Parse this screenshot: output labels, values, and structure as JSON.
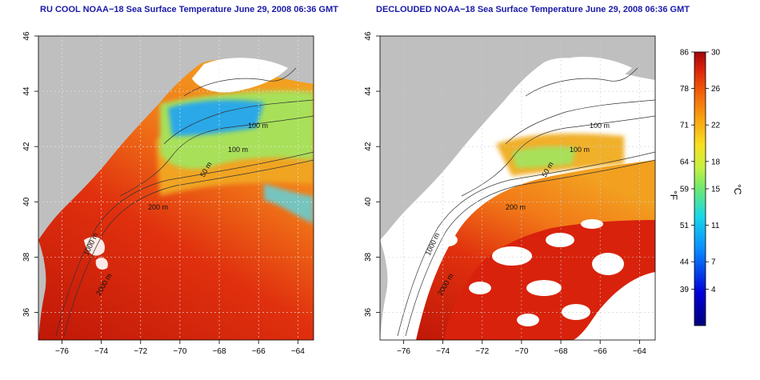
{
  "panels": [
    {
      "id": "ru-cool",
      "title": "RU COOL NOAA−18 Sea Surface Temperature June 29, 2008 06:36 GMT",
      "depth_labels": [
        "100 m",
        "100 m",
        "50 m",
        "200 m",
        "1000 m",
        "2000 m"
      ]
    },
    {
      "id": "declouded",
      "title": "DECLOUDED NOAA−18 Sea Surface Temperature June 29, 2008 06:36 GMT",
      "depth_labels": [
        "100 m",
        "100 m",
        "50 m",
        "200 m",
        "1000 m",
        "2000 m"
      ]
    }
  ],
  "map_axes": {
    "lon_ticks": [
      "−76",
      "−74",
      "−72",
      "−70",
      "−68",
      "−66",
      "−64"
    ],
    "lat_ticks": [
      "36",
      "38",
      "40",
      "42",
      "44",
      "46"
    ],
    "lon_values": [
      -76,
      -74,
      -72,
      -70,
      -68,
      -66,
      -64
    ],
    "lat_values": [
      36,
      38,
      40,
      42,
      44,
      46
    ],
    "lon_range": [
      -77.2,
      -63.2
    ],
    "lat_range": [
      35,
      46
    ]
  },
  "colorbar": {
    "fahrenheit_ticks": [
      "86",
      "78",
      "71",
      "64",
      "59",
      "51",
      "44",
      "39"
    ],
    "celsius_ticks": [
      "30",
      "26",
      "22",
      "18",
      "15",
      "11",
      "7",
      "4"
    ],
    "celsius_values": [
      30,
      26,
      22,
      18,
      15,
      11,
      7,
      4
    ],
    "celsius_range": [
      0,
      30
    ],
    "fahrenheit_unit": "°F",
    "celsius_unit": "°C"
  },
  "colors": {
    "land": "#bfbfbf",
    "cloud": "#ffffff",
    "title": "#1a1aa8",
    "warm": "#d9260f",
    "hot": "#c01808",
    "mid": "#f07a14",
    "cool": "#9ae05a",
    "cold": "#2a6ae0"
  }
}
